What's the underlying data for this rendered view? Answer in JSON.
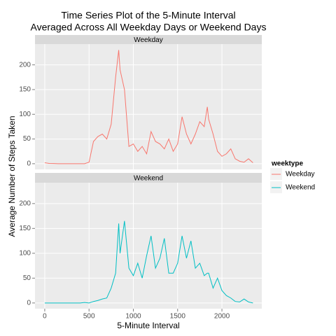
{
  "chart_data": {
    "type": "line",
    "title": [
      "Time Series Plot of the 5-Minute Interval",
      "Averaged Across All Weekday Days or Weekend Days"
    ],
    "x_label": "5-Minute Interval",
    "y_label": "Average Number of Steps Taken",
    "legend_title": "weektype",
    "x": [
      0,
      50,
      100,
      150,
      200,
      250,
      300,
      350,
      400,
      450,
      500,
      550,
      600,
      650,
      700,
      750,
      800,
      835,
      850,
      900,
      950,
      1000,
      1050,
      1100,
      1150,
      1200,
      1250,
      1300,
      1350,
      1400,
      1450,
      1500,
      1550,
      1600,
      1650,
      1700,
      1750,
      1800,
      1835,
      1850,
      1900,
      1950,
      2000,
      2050,
      2100,
      2150,
      2200,
      2250,
      2300,
      2350
    ],
    "series": [
      {
        "name": "Weekday",
        "color": "#f8766d",
        "values": [
          2,
          0.5,
          0.3,
          0,
          0,
          0,
          0,
          0,
          0,
          0,
          3,
          45,
          55,
          60,
          50,
          80,
          175,
          230,
          190,
          150,
          35,
          40,
          25,
          35,
          20,
          65,
          45,
          40,
          30,
          50,
          25,
          40,
          95,
          60,
          40,
          60,
          85,
          75,
          115,
          90,
          60,
          25,
          15,
          20,
          30,
          10,
          5,
          3,
          10,
          2
        ]
      },
      {
        "name": "Weekend",
        "color": "#00bfc4",
        "values": [
          0,
          0,
          0,
          0,
          0,
          0,
          0,
          0,
          0,
          1,
          0,
          3,
          5,
          8,
          10,
          30,
          60,
          160,
          100,
          165,
          70,
          55,
          80,
          50,
          95,
          135,
          70,
          90,
          130,
          60,
          60,
          80,
          135,
          90,
          125,
          70,
          80,
          55,
          60,
          60,
          30,
          50,
          25,
          15,
          10,
          3,
          2,
          8,
          2,
          0
        ]
      }
    ],
    "xlim": [
      -110,
      2450
    ],
    "xticks": [
      0,
      500,
      1000,
      1500,
      2000
    ],
    "ylim": [
      -11.5,
      242
    ],
    "yticks": [
      0,
      50,
      100,
      150,
      200
    ],
    "grid": true
  }
}
